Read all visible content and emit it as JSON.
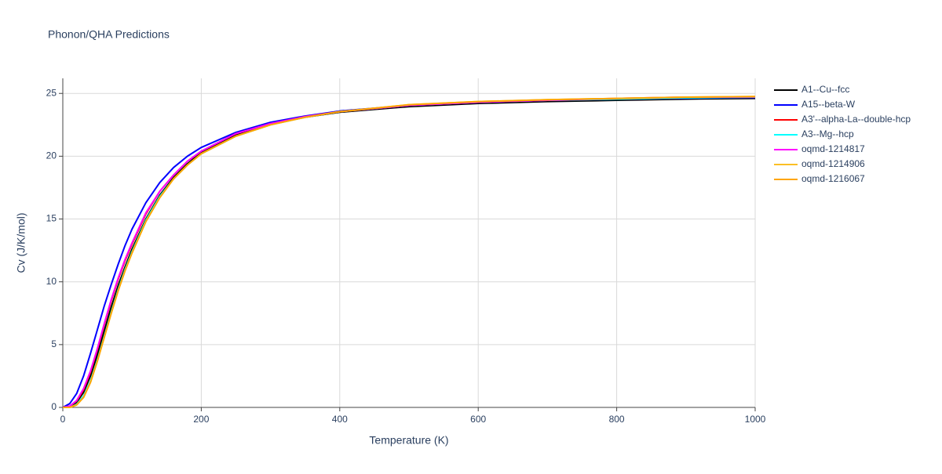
{
  "chart_data": {
    "type": "line",
    "title": "Phonon/QHA Predictions",
    "x_label": "Temperature (K)",
    "y_label": "Cv (J/K/mol)",
    "x": [
      0,
      10,
      20,
      30,
      40,
      50,
      60,
      70,
      80,
      90,
      100,
      120,
      140,
      160,
      180,
      200,
      250,
      300,
      350,
      400,
      500,
      600,
      700,
      800,
      900,
      1000
    ],
    "xlim": [
      0,
      1000
    ],
    "xticks": [
      0,
      200,
      400,
      600,
      800,
      1000
    ],
    "ylim": [
      0,
      26.2
    ],
    "yticks": [
      0,
      5,
      10,
      15,
      20,
      25
    ],
    "grid": true,
    "series": [
      {
        "name": "A1--Cu--fcc",
        "color": "#000000",
        "values": [
          0,
          0.05,
          0.4,
          1.2,
          2.5,
          4.2,
          6.1,
          8.0,
          9.7,
          11.2,
          12.6,
          15.0,
          16.9,
          18.3,
          19.4,
          20.3,
          21.7,
          22.55,
          23.1,
          23.5,
          23.95,
          24.2,
          24.35,
          24.45,
          24.55,
          24.6
        ]
      },
      {
        "name": "A15--beta-W",
        "color": "#0000ff",
        "values": [
          0,
          0.3,
          1.1,
          2.5,
          4.3,
          6.2,
          8.1,
          9.8,
          11.4,
          12.9,
          14.2,
          16.3,
          17.9,
          19.1,
          20.0,
          20.7,
          21.9,
          22.7,
          23.2,
          23.6,
          24.05,
          24.3,
          24.45,
          24.55,
          24.62,
          24.67
        ]
      },
      {
        "name": "A3'--alpha-La--double-hcp",
        "color": "#ff0000",
        "values": [
          0,
          0.1,
          0.5,
          1.4,
          2.8,
          4.6,
          6.6,
          8.5,
          10.2,
          11.7,
          13.0,
          15.4,
          17.2,
          18.5,
          19.6,
          20.4,
          21.8,
          22.6,
          23.15,
          23.55,
          24.05,
          24.3,
          24.45,
          24.55,
          24.65,
          24.7
        ]
      },
      {
        "name": "A3--Mg--hcp",
        "color": "#00ffff",
        "values": [
          0,
          0,
          0.25,
          0.9,
          2.1,
          3.8,
          5.7,
          7.6,
          9.4,
          11.0,
          12.4,
          14.9,
          16.8,
          18.2,
          19.3,
          20.2,
          21.6,
          22.5,
          23.1,
          23.55,
          24.05,
          24.3,
          24.45,
          24.55,
          24.65,
          24.7
        ]
      },
      {
        "name": "oqmd-1214817",
        "color": "#ff00ff",
        "values": [
          0,
          0.1,
          0.55,
          1.5,
          2.9,
          4.7,
          6.7,
          8.6,
          10.3,
          11.8,
          13.1,
          15.5,
          17.2,
          18.5,
          19.6,
          20.4,
          21.8,
          22.6,
          23.15,
          23.55,
          24.05,
          24.3,
          24.45,
          24.6,
          24.7,
          24.72
        ]
      },
      {
        "name": "oqmd-1214906",
        "color": "#fbbf24",
        "values": [
          0,
          0,
          0.2,
          0.8,
          2.0,
          3.7,
          5.6,
          7.5,
          9.3,
          10.9,
          12.3,
          14.8,
          16.7,
          18.2,
          19.3,
          20.2,
          21.6,
          22.5,
          23.1,
          23.55,
          24.1,
          24.35,
          24.5,
          24.6,
          24.7,
          24.75
        ]
      },
      {
        "name": "oqmd-1216067",
        "color": "#ffa500",
        "values": [
          0,
          0,
          0.2,
          0.8,
          2.0,
          3.7,
          5.6,
          7.5,
          9.3,
          10.9,
          12.3,
          14.8,
          16.7,
          18.2,
          19.3,
          20.2,
          21.6,
          22.5,
          23.1,
          23.55,
          24.1,
          24.35,
          24.5,
          24.6,
          24.7,
          24.75
        ]
      }
    ]
  }
}
